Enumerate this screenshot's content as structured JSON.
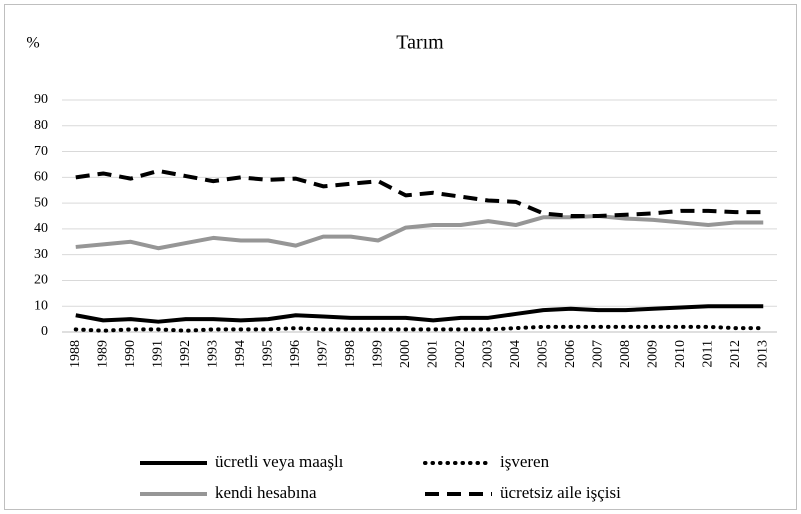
{
  "chart_data": {
    "type": "line",
    "title": "Tarım",
    "y_label": "%",
    "categories": [
      "1988",
      "1989",
      "1990",
      "1991",
      "1992",
      "1993",
      "1994",
      "1995",
      "1996",
      "1997",
      "1998",
      "1999",
      "2000",
      "2001",
      "2002",
      "2003",
      "2004",
      "2005",
      "2006",
      "2007",
      "2008",
      "2009",
      "2010",
      "2011",
      "2012",
      "2013"
    ],
    "series": [
      {
        "name": "ücretli veya maaşlı",
        "color": "#000000",
        "dash": "solid",
        "values": [
          6.5,
          4.5,
          5,
          4,
          5,
          5,
          4.5,
          5,
          6.5,
          6,
          5.5,
          5.5,
          5.5,
          4.5,
          5.5,
          5.5,
          7,
          8.5,
          9,
          8.5,
          8.5,
          9,
          9.5,
          10,
          10,
          10
        ]
      },
      {
        "name": "işveren",
        "color": "#000000",
        "dash": "dotted",
        "values": [
          1,
          0.5,
          1,
          1,
          0.5,
          1,
          1,
          1,
          1.5,
          1,
          1,
          1,
          1,
          1,
          1,
          1,
          1.5,
          2,
          2,
          2,
          2,
          2,
          2,
          2,
          1.5,
          1.5
        ]
      },
      {
        "name": "kendi hesabına",
        "color": "#969696",
        "dash": "solid",
        "values": [
          33,
          34,
          35,
          32.5,
          34.5,
          36.5,
          35.5,
          35.5,
          33.5,
          37,
          37,
          35.5,
          40.5,
          41.5,
          41.5,
          43,
          41.5,
          44.5,
          44.5,
          45,
          44,
          43.5,
          42.5,
          41.5,
          42.5,
          42.5
        ]
      },
      {
        "name": "ücretsiz aile işçisi",
        "color": "#000000",
        "dash": "dashed",
        "values": [
          60,
          61.5,
          59.5,
          62.5,
          60.5,
          58.5,
          60,
          59,
          59.5,
          56.5,
          57.5,
          58.5,
          53,
          54,
          52.5,
          51,
          50.5,
          46,
          45,
          45,
          45.5,
          46,
          47,
          47,
          46.5,
          46.5
        ]
      }
    ],
    "ylim": [
      0,
      90
    ],
    "yticks": [
      0,
      10,
      20,
      30,
      40,
      50,
      60,
      70,
      80,
      90
    ],
    "grid": true
  }
}
